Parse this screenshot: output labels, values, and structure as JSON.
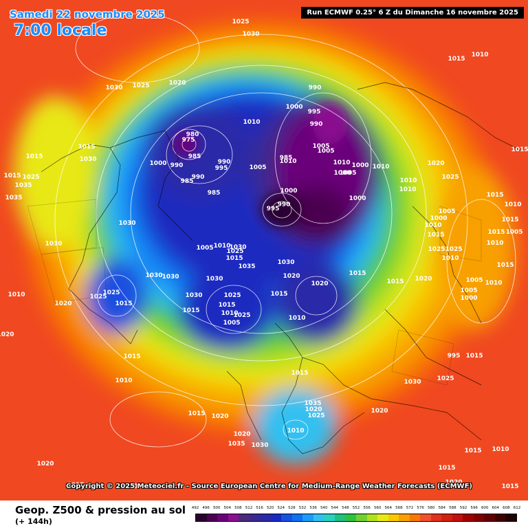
{
  "header": {
    "date": "Samedi 22 novembre 2025",
    "time": "7:00 locale",
    "run": "Run ECMWF 0.25° 6 Z du Dimanche 16 novembre 2025"
  },
  "copyright": "Copyright © 2025 Meteociel.fr - Source European Centre for Medium-Range Weather Forecasts (ECMWF)",
  "footer": {
    "title": "Geop. Z500 & pression au sol",
    "lead": "(+ 144h)"
  },
  "legend": {
    "levels": [
      "492",
      "496",
      "500",
      "504",
      "508",
      "512",
      "516",
      "520",
      "524",
      "528",
      "532",
      "536",
      "540",
      "544",
      "548",
      "552",
      "556",
      "560",
      "564",
      "568",
      "572",
      "576",
      "580",
      "584",
      "588",
      "592",
      "596",
      "600",
      "604",
      "608",
      "612"
    ],
    "colors": [
      "#2a0030",
      "#4b0050",
      "#6a007a",
      "#8a1090",
      "#4a2a7a",
      "#3a2a90",
      "#2a2aa8",
      "#1a2ac0",
      "#1a50e0",
      "#1070f0",
      "#1c9cf8",
      "#33c0f0",
      "#2ad0c0",
      "#20c080",
      "#30c040",
      "#70d030",
      "#b0e020",
      "#e8e818",
      "#f8c800",
      "#f8a000",
      "#f87800",
      "#f05030",
      "#e03020",
      "#d02010",
      "#c01010",
      "#a00000",
      "#800000",
      "#600000",
      "#400000",
      "#200000"
    ]
  },
  "pressure_labels": [
    {
      "text": "1025"
    },
    {
      "text": "1030"
    },
    {
      "text": "1030"
    },
    {
      "text": "1025"
    },
    {
      "text": "1020"
    },
    {
      "text": "1010"
    },
    {
      "text": "1015"
    },
    {
      "text": "980"
    },
    {
      "text": "975"
    },
    {
      "text": "985"
    },
    {
      "text": "990"
    },
    {
      "text": "995"
    },
    {
      "text": "1000"
    },
    {
      "text": "990"
    },
    {
      "text": "985"
    },
    {
      "text": "990"
    },
    {
      "text": "1005"
    },
    {
      "text": "985"
    },
    {
      "text": "1010"
    },
    {
      "text": "985"
    },
    {
      "text": "990"
    },
    {
      "text": "1000"
    },
    {
      "text": "995"
    },
    {
      "text": "990"
    },
    {
      "text": "1005"
    },
    {
      "text": "1005"
    },
    {
      "text": "1010"
    },
    {
      "text": "1000"
    },
    {
      "text": "1005"
    },
    {
      "text": "1000"
    },
    {
      "text": "1010"
    },
    {
      "text": "1000"
    },
    {
      "text": "990"
    },
    {
      "text": "995"
    },
    {
      "text": "1000"
    },
    {
      "text": "1010"
    },
    {
      "text": "1020"
    },
    {
      "text": "1025"
    },
    {
      "text": "1010"
    },
    {
      "text": "1010"
    },
    {
      "text": "1015"
    },
    {
      "text": "1030"
    },
    {
      "text": "1015"
    },
    {
      "text": "1025"
    },
    {
      "text": "1035"
    },
    {
      "text": "1035"
    },
    {
      "text": "1030"
    },
    {
      "text": "1030"
    },
    {
      "text": "1025"
    },
    {
      "text": "1025"
    },
    {
      "text": "1010"
    },
    {
      "text": "1015"
    },
    {
      "text": "1010"
    },
    {
      "text": "1015"
    },
    {
      "text": "1015"
    },
    {
      "text": "1005"
    },
    {
      "text": "1000"
    },
    {
      "text": "1015"
    },
    {
      "text": "1005"
    },
    {
      "text": "1010"
    },
    {
      "text": "1015"
    },
    {
      "text": "1010"
    },
    {
      "text": "1015"
    },
    {
      "text": "1005"
    },
    {
      "text": "1010"
    },
    {
      "text": "1005"
    },
    {
      "text": "1000"
    },
    {
      "text": "995"
    },
    {
      "text": "1015"
    },
    {
      "text": "1020"
    },
    {
      "text": "1015"
    },
    {
      "text": "1015"
    },
    {
      "text": "1020"
    },
    {
      "text": "1010"
    },
    {
      "text": "1015"
    },
    {
      "text": "1020"
    },
    {
      "text": "1030"
    },
    {
      "text": "1035"
    },
    {
      "text": "1025"
    },
    {
      "text": "1015"
    },
    {
      "text": "1005"
    },
    {
      "text": "1010"
    },
    {
      "text": "1030"
    },
    {
      "text": "1025"
    },
    {
      "text": "1030"
    },
    {
      "text": "1030"
    },
    {
      "text": "1015"
    },
    {
      "text": "1015"
    },
    {
      "text": "1010"
    },
    {
      "text": "1005"
    },
    {
      "text": "1025"
    },
    {
      "text": "1030"
    },
    {
      "text": "1030"
    },
    {
      "text": "1025"
    },
    {
      "text": "1025"
    },
    {
      "text": "1015"
    },
    {
      "text": "1020"
    },
    {
      "text": "1015"
    },
    {
      "text": "1010"
    },
    {
      "text": "1015"
    },
    {
      "text": "1020"
    },
    {
      "text": "1020"
    },
    {
      "text": "1035"
    },
    {
      "text": "1030"
    },
    {
      "text": "1035"
    },
    {
      "text": "1020"
    },
    {
      "text": "1025"
    },
    {
      "text": "1010"
    },
    {
      "text": "1015"
    },
    {
      "text": "1030"
    },
    {
      "text": "1025"
    },
    {
      "text": "1020"
    },
    {
      "text": "1015"
    },
    {
      "text": "1010"
    },
    {
      "text": "1015"
    },
    {
      "text": "1020"
    },
    {
      "text": "1015"
    },
    {
      "text": "1020"
    },
    {
      "text": "1020"
    },
    {
      "text": "1010"
    },
    {
      "text": "1010"
    },
    {
      "text": "1015"
    },
    {
      "text": "1015"
    }
  ]
}
